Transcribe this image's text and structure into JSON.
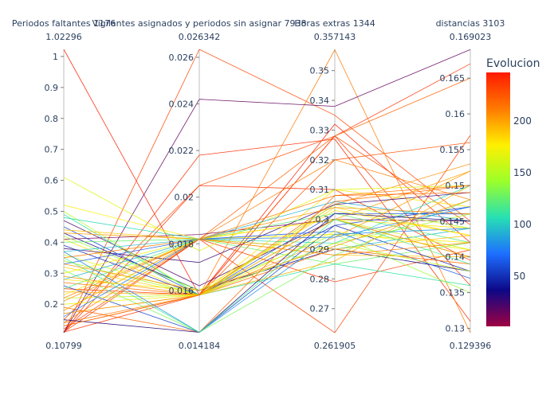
{
  "chart_data": {
    "type": "parallel_coordinates",
    "axes": [
      {
        "label": "Periodos faltantes 1176",
        "range": [
          0.10799,
          1.02296
        ],
        "range_labels": [
          "0.10799",
          "1.02296"
        ],
        "ticks": [
          0.2,
          0.3,
          0.4,
          0.5,
          0.6,
          0.7,
          0.8,
          0.9,
          1
        ],
        "tick_labels": [
          "0.2",
          "0.3",
          "0.4",
          "0.5",
          "0.6",
          "0.7",
          "0.8",
          "0.9",
          "1"
        ]
      },
      {
        "label": "Vigilantes asignados y periodos sin asignar 7938",
        "range": [
          0.014184,
          0.026342
        ],
        "range_labels": [
          "0.014184",
          "0.026342"
        ],
        "ticks": [
          0.016,
          0.018,
          0.02,
          0.022,
          0.024,
          0.026
        ],
        "tick_labels": [
          "0.016",
          "0.018",
          "0.02",
          "0.022",
          "0.024",
          "0.026"
        ]
      },
      {
        "label": "Horas extras 1344",
        "range": [
          0.261905,
          0.357143
        ],
        "range_labels": [
          "0.261905",
          "0.357143"
        ],
        "ticks": [
          0.27,
          0.28,
          0.29,
          0.3,
          0.31,
          0.32,
          0.33,
          0.34,
          0.35
        ],
        "tick_labels": [
          "0.27",
          "0.28",
          "0.29",
          "0.3",
          "0.31",
          "0.32",
          "0.33",
          "0.34",
          "0.35"
        ]
      },
      {
        "label": "distancias 3103",
        "range": [
          0.129396,
          0.169023
        ],
        "range_labels": [
          "0.129396",
          "0.169023"
        ],
        "ticks": [
          0.13,
          0.135,
          0.14,
          0.145,
          0.15,
          0.155,
          0.16,
          0.165
        ],
        "tick_labels": [
          "0.13",
          "0.135",
          "0.14",
          "0.145",
          "0.15",
          "0.155",
          "0.16",
          "0.165"
        ]
      }
    ],
    "colorbar": {
      "title": "Evolucion",
      "range": [
        1,
        246
      ],
      "ticks": [
        50,
        100,
        150,
        200
      ],
      "tick_labels": [
        "50",
        "100",
        "150",
        "200"
      ],
      "colorscale": [
        "#9e0142",
        "#0d0887",
        "#1d6fff",
        "#27e0b4",
        "#9bff2a",
        "#fff000",
        "#ff7a00",
        "#ff1a00"
      ]
    },
    "lines": [
      {
        "values": [
          1.02296,
          0.0158,
          0.332,
          0.142
        ],
        "color": 245
      },
      {
        "values": [
          0.10799,
          0.026342,
          0.335,
          0.145
        ],
        "color": 230
      },
      {
        "values": [
          0.10799,
          0.0218,
          0.327,
          0.131
        ],
        "color": 240
      },
      {
        "values": [
          0.10799,
          0.0205,
          0.31,
          0.1395
        ],
        "color": 238
      },
      {
        "values": [
          0.11,
          0.0158,
          0.328,
          0.167
        ],
        "color": 236
      },
      {
        "values": [
          0.12,
          0.0182,
          0.2619,
          0.157
        ],
        "color": 232
      },
      {
        "values": [
          0.15,
          0.0205,
          0.328,
          0.1445
        ],
        "color": 228
      },
      {
        "values": [
          0.13,
          0.0158,
          0.32,
          0.156
        ],
        "color": 226
      },
      {
        "values": [
          0.11,
          0.0182,
          0.279,
          0.141
        ],
        "color": 234
      },
      {
        "values": [
          0.14,
          0.0158,
          0.357,
          0.1294
        ],
        "color": 212
      },
      {
        "values": [
          0.18,
          0.0182,
          0.328,
          0.165
        ],
        "color": 220
      },
      {
        "values": [
          0.10799,
          0.0242,
          0.338,
          0.169
        ],
        "color": 15
      },
      {
        "values": [
          0.25,
          0.0158,
          0.328,
          0.136
        ],
        "color": 233
      },
      {
        "values": [
          0.22,
          0.0182,
          0.32,
          0.148
        ],
        "color": 210
      },
      {
        "values": [
          0.17,
          0.0158,
          0.305,
          0.153
        ],
        "color": 205
      },
      {
        "values": [
          0.47,
          0.0162,
          0.3,
          0.14
        ],
        "color": 20
      },
      {
        "values": [
          0.43,
          0.016,
          0.29,
          0.138
        ],
        "color": 35
      },
      {
        "values": [
          0.41,
          0.0184,
          0.3,
          0.145
        ],
        "color": 10
      },
      {
        "values": [
          0.61,
          0.0177,
          0.31,
          0.15
        ],
        "color": 165
      },
      {
        "values": [
          0.52,
          0.0182,
          0.295,
          0.142
        ],
        "color": 175
      },
      {
        "values": [
          0.5,
          0.0158,
          0.305,
          0.144
        ],
        "color": 150
      },
      {
        "values": [
          0.49,
          0.0158,
          0.285,
          0.136
        ],
        "color": 110
      },
      {
        "values": [
          0.48,
          0.0182,
          0.292,
          0.15
        ],
        "color": 105
      },
      {
        "values": [
          0.45,
          0.0158,
          0.302,
          0.146
        ],
        "color": 60
      },
      {
        "values": [
          0.44,
          0.0182,
          0.288,
          0.14
        ],
        "color": 190
      },
      {
        "values": [
          0.43,
          0.0182,
          0.3,
          0.152
        ],
        "color": 200
      },
      {
        "values": [
          0.42,
          0.016,
          0.295,
          0.135
        ],
        "color": 140
      },
      {
        "values": [
          0.41,
          0.0158,
          0.31,
          0.147
        ],
        "color": 180
      },
      {
        "values": [
          0.4,
          0.0182,
          0.285,
          0.142
        ],
        "color": 125
      },
      {
        "values": [
          0.39,
          0.0158,
          0.298,
          0.138
        ],
        "color": 45
      },
      {
        "values": [
          0.38,
          0.0172,
          0.305,
          0.149
        ],
        "color": 25
      },
      {
        "values": [
          0.37,
          0.0182,
          0.29,
          0.144
        ],
        "color": 95
      },
      {
        "values": [
          0.36,
          0.0158,
          0.3,
          0.141
        ],
        "color": 160
      },
      {
        "values": [
          0.35,
          0.0182,
          0.308,
          0.15
        ],
        "color": 210
      },
      {
        "values": [
          0.34,
          0.0158,
          0.292,
          0.146
        ],
        "color": 145
      },
      {
        "values": [
          0.33,
          0.0182,
          0.296,
          0.137
        ],
        "color": 65
      },
      {
        "values": [
          0.32,
          0.0158,
          0.304,
          0.143
        ],
        "color": 185
      },
      {
        "values": [
          0.31,
          0.0142,
          0.288,
          0.148
        ],
        "color": 130
      },
      {
        "values": [
          0.3,
          0.0182,
          0.3,
          0.14
        ],
        "color": 170
      },
      {
        "values": [
          0.29,
          0.0158,
          0.294,
          0.152
        ],
        "color": 200
      },
      {
        "values": [
          0.28,
          0.0182,
          0.306,
          0.145
        ],
        "color": 90
      },
      {
        "values": [
          0.27,
          0.0158,
          0.29,
          0.139
        ],
        "color": 215
      },
      {
        "values": [
          0.26,
          0.0142,
          0.298,
          0.147
        ],
        "color": 55
      },
      {
        "values": [
          0.25,
          0.0182,
          0.302,
          0.142
        ],
        "color": 120
      },
      {
        "values": [
          0.24,
          0.0158,
          0.286,
          0.15
        ],
        "color": 195
      },
      {
        "values": [
          0.23,
          0.0182,
          0.3,
          0.144
        ],
        "color": 180
      },
      {
        "values": [
          0.22,
          0.0158,
          0.292,
          0.138
        ],
        "color": 155
      },
      {
        "values": [
          0.21,
          0.0182,
          0.304,
          0.146
        ],
        "color": 205
      },
      {
        "values": [
          0.2,
          0.0158,
          0.296,
          0.141
        ],
        "color": 170
      },
      {
        "values": [
          0.19,
          0.0142,
          0.308,
          0.149
        ],
        "color": 220
      },
      {
        "values": [
          0.18,
          0.0182,
          0.29,
          0.143
        ],
        "color": 190
      },
      {
        "values": [
          0.17,
          0.0158,
          0.3,
          0.14
        ],
        "color": 200
      },
      {
        "values": [
          0.16,
          0.0182,
          0.294,
          0.147
        ],
        "color": 75
      },
      {
        "values": [
          0.15,
          0.0142,
          0.302,
          0.145
        ],
        "color": 30
      },
      {
        "values": [
          0.14,
          0.0182,
          0.288,
          0.142
        ],
        "color": 210
      },
      {
        "values": [
          0.13,
          0.0158,
          0.306,
          0.15
        ],
        "color": 215
      },
      {
        "values": [
          0.37,
          0.0142,
          0.295,
          0.144
        ],
        "color": 80
      },
      {
        "values": [
          0.35,
          0.0142,
          0.3,
          0.139
        ],
        "color": 115
      },
      {
        "values": [
          0.33,
          0.016,
          0.291,
          0.148
        ],
        "color": 205
      },
      {
        "values": [
          0.28,
          0.016,
          0.303,
          0.143
        ],
        "color": 180
      }
    ]
  }
}
